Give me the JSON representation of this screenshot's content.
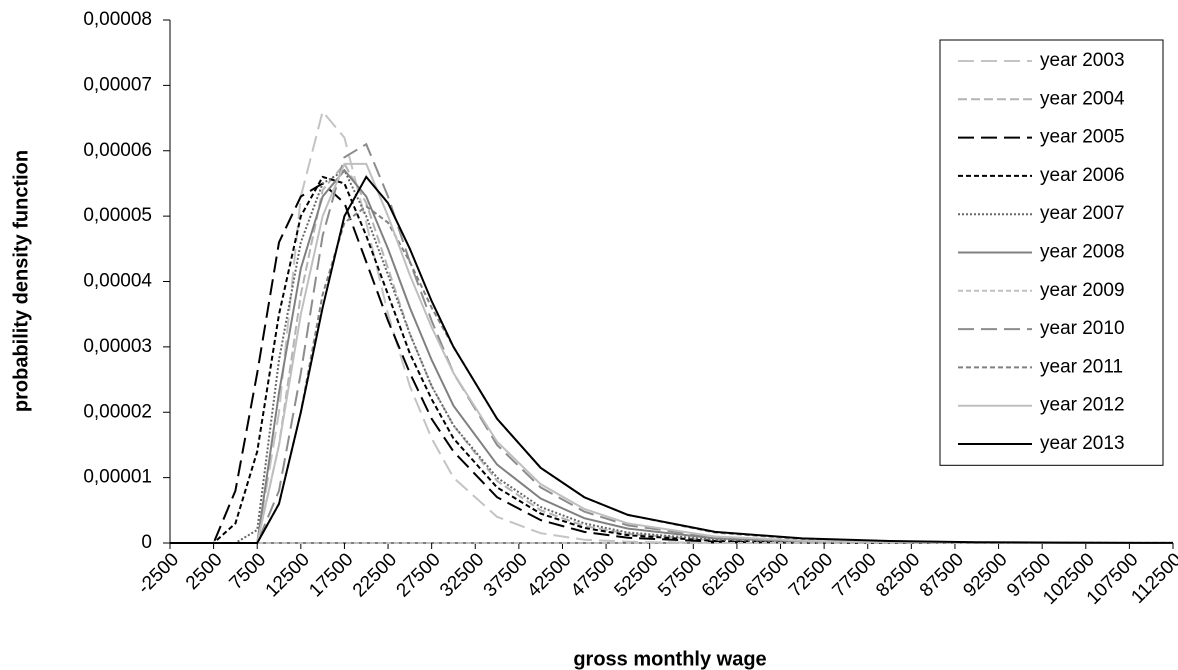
{
  "chart_data": {
    "type": "line",
    "x_label": "gross monthly wage",
    "y_label": "probability density function",
    "x": [
      -2500,
      2500,
      5000,
      7500,
      10000,
      12500,
      15000,
      17500,
      20000,
      22500,
      25000,
      27500,
      30000,
      35000,
      40000,
      45000,
      50000,
      60000,
      70000,
      80000,
      90000,
      100000,
      112500
    ],
    "xlim": [
      -2500,
      112500
    ],
    "xticks": [
      -2500,
      2500,
      7500,
      12500,
      17500,
      22500,
      27500,
      32500,
      37500,
      42500,
      47500,
      52500,
      57500,
      62500,
      67500,
      72500,
      77500,
      82500,
      87500,
      92500,
      97500,
      102500,
      107500,
      112500
    ],
    "ylim": [
      0,
      8e-05
    ],
    "yticks": [
      0,
      {
        "value": 1e-05,
        "label": "0,00001"
      },
      {
        "value": 2e-05,
        "label": "0,00002"
      },
      {
        "value": 3e-05,
        "label": "0,00003"
      },
      {
        "value": 4e-05,
        "label": "0,00004"
      },
      {
        "value": 5e-05,
        "label": "0,00005"
      },
      {
        "value": 6e-05,
        "label": "0,00006"
      },
      {
        "value": 7e-05,
        "label": "0,00007"
      },
      {
        "value": 8e-05,
        "label": "0,00008"
      }
    ],
    "legend": "top-right",
    "series": [
      {
        "name": "year 2003",
        "color": "#c4c4c4",
        "dash": "long",
        "values": [
          0,
          0,
          0,
          0,
          2e-05,
          5.3e-05,
          6.6e-05,
          6.2e-05,
          4.9e-05,
          3.5e-05,
          2.4e-05,
          1.6e-05,
          1e-05,
          4e-06,
          1.5e-06,
          5e-07,
          2e-07,
          0,
          0,
          0,
          0,
          0,
          0
        ]
      },
      {
        "name": "year 2004",
        "color": "#b4b4b4",
        "dash": "medium",
        "values": [
          0,
          0,
          0,
          0,
          1.5e-05,
          3.8e-05,
          5.4e-05,
          5.8e-05,
          5.2e-05,
          4.2e-05,
          3.2e-05,
          2.4e-05,
          1.8e-05,
          9.5e-06,
          5e-06,
          2.6e-06,
          1.4e-06,
          4e-07,
          1e-07,
          0,
          0,
          0,
          0
        ]
      },
      {
        "name": "year 2005",
        "color": "#000000",
        "dash": "long",
        "values": [
          0,
          0,
          8e-06,
          2.6e-05,
          4.6e-05,
          5.3e-05,
          5.5e-05,
          5.2e-05,
          4.3e-05,
          3.4e-05,
          2.6e-05,
          1.9e-05,
          1.4e-05,
          7e-06,
          3.5e-06,
          1.7e-06,
          8e-07,
          2e-07,
          5e-08,
          0,
          0,
          0,
          0
        ]
      },
      {
        "name": "year 2006",
        "color": "#000000",
        "dash": "short",
        "values": [
          0,
          0,
          3e-06,
          1.4e-05,
          3.5e-05,
          5e-05,
          5.6e-05,
          5.5e-05,
          4.7e-05,
          3.8e-05,
          2.9e-05,
          2.2e-05,
          1.6e-05,
          8.5e-06,
          4.5e-06,
          2.3e-06,
          1.2e-06,
          3e-07,
          1e-07,
          0,
          0,
          0,
          0
        ]
      },
      {
        "name": "year 2007",
        "color": "#666666",
        "dash": "dotted",
        "values": [
          0,
          0,
          0,
          2e-06,
          2.8e-05,
          4.6e-05,
          5.5e-05,
          5.7e-05,
          5e-05,
          4.1e-05,
          3.2e-05,
          2.4e-05,
          1.8e-05,
          1e-05,
          5.5e-06,
          3e-06,
          1.6e-06,
          5e-07,
          1.5e-07,
          5e-08,
          0,
          0,
          0
        ]
      },
      {
        "name": "year 2008",
        "color": "#808080",
        "dash": "solid",
        "values": [
          0,
          0,
          0,
          0,
          2.3e-05,
          4.2e-05,
          5.3e-05,
          5.7e-05,
          5.3e-05,
          4.5e-05,
          3.6e-05,
          2.8e-05,
          2.1e-05,
          1.2e-05,
          6.8e-06,
          3.8e-06,
          2.2e-06,
          7e-07,
          2.5e-07,
          1e-07,
          4e-08,
          0,
          0
        ]
      },
      {
        "name": "year 2009",
        "color": "#c0c0c0",
        "dash": "short",
        "values": [
          0,
          0,
          0,
          0,
          0,
          0,
          0,
          0,
          0,
          0,
          0,
          0,
          0,
          0,
          0,
          0,
          0,
          0,
          0,
          0,
          0,
          0,
          0
        ]
      },
      {
        "name": "year 2010",
        "color": "#8c8c8c",
        "dash": "long",
        "values": [
          0,
          0,
          0,
          0,
          8e-06,
          2.6e-05,
          4.7e-05,
          5.9e-05,
          6.1e-05,
          5.3e-05,
          4.3e-05,
          3.4e-05,
          2.6e-05,
          1.5e-05,
          8.5e-06,
          4.8e-06,
          2.7e-06,
          9e-07,
          3e-07,
          1e-07,
          4e-08,
          0,
          0
        ]
      },
      {
        "name": "year 2011",
        "color": "#808080",
        "dash": "short",
        "values": [
          0,
          0,
          0,
          0,
          6e-06,
          2e-05,
          3.8e-05,
          4.9e-05,
          5.15e-05,
          4.9e-05,
          4.3e-05,
          3.6e-05,
          3e-05,
          1.9e-05,
          1.15e-05,
          7e-06,
          4.3e-06,
          1.6e-06,
          6e-07,
          2.5e-07,
          1e-07,
          4e-08,
          1e-08
        ]
      },
      {
        "name": "year 2012",
        "color": "#bfbfbf",
        "dash": "solid",
        "values": [
          0,
          0,
          0,
          0,
          1.5e-05,
          3.5e-05,
          5e-05,
          5.8e-05,
          5.8e-05,
          5e-05,
          4.1e-05,
          3.3e-05,
          2.6e-05,
          1.55e-05,
          9e-06,
          5.2e-06,
          3e-06,
          1e-06,
          3.5e-07,
          1.3e-07,
          5e-08,
          2e-08,
          0
        ]
      },
      {
        "name": "year 2013",
        "color": "#000000",
        "dash": "solid",
        "values": [
          0,
          0,
          0,
          0,
          6e-06,
          2e-05,
          3.6e-05,
          5e-05,
          5.6e-05,
          5.2e-05,
          4.5e-05,
          3.7e-05,
          3e-05,
          1.9e-05,
          1.15e-05,
          7e-06,
          4.3e-06,
          1.7e-06,
          7e-07,
          3e-07,
          1.2e-07,
          5e-08,
          2e-08
        ]
      }
    ]
  }
}
